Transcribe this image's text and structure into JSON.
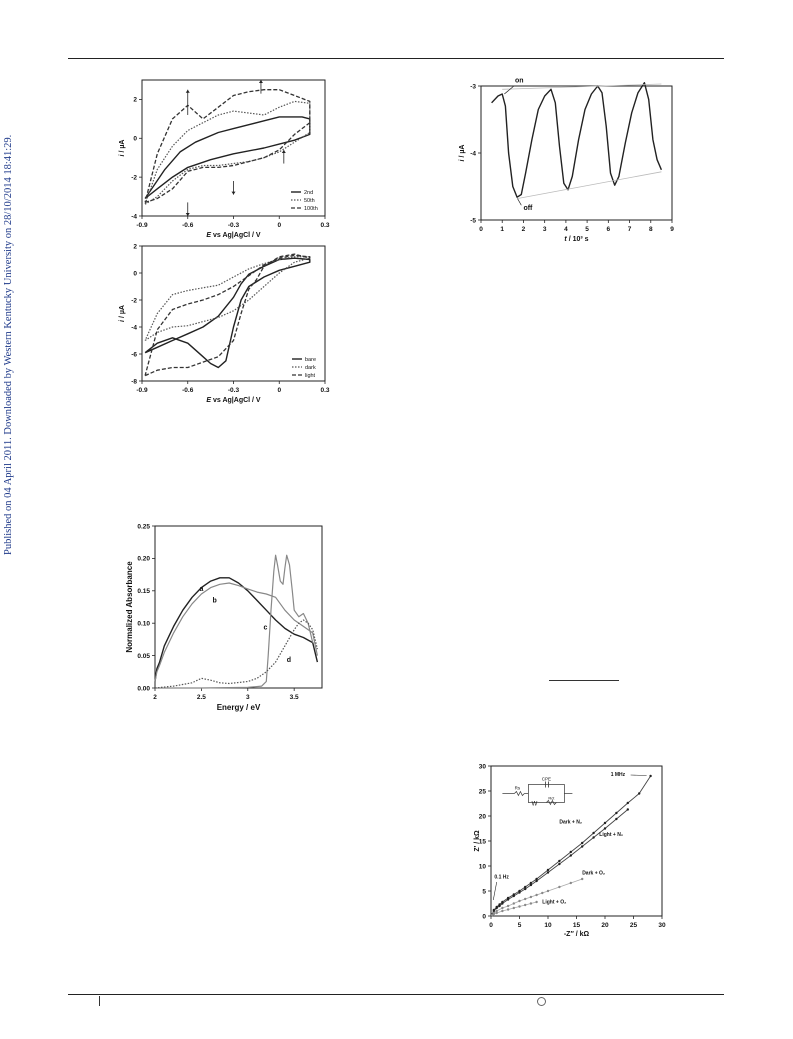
{
  "side_note": "Published on 04 April 2011. Downloaded by Western Kentucky University on 28/10/2014 18:41:29.",
  "chart_data": [
    {
      "type": "line",
      "id": "cv-cycles",
      "xlabel_italic": "E",
      "xlabel_rest": " vs Ag|AgCl / V",
      "ylabel_italic": "i",
      "ylabel_rest": " / µA",
      "xlim": [
        -0.9,
        0.3
      ],
      "ylim": [
        -4,
        3
      ],
      "xticks": [
        -0.9,
        -0.6,
        -0.3,
        0.0,
        0.3
      ],
      "xtick_labels": [
        "-0.9",
        "-0.6",
        "-0.3",
        "0",
        "0.3"
      ],
      "yticks": [
        -4,
        -2,
        0,
        2
      ],
      "ytick_labels": [
        "-4",
        "-2",
        "0",
        "2"
      ],
      "legend_position": "bottom-right",
      "series": [
        {
          "name": "2nd",
          "style": "solid",
          "x": [
            -0.88,
            -0.8,
            -0.7,
            -0.6,
            -0.45,
            -0.3,
            -0.1,
            0.0,
            0.1,
            0.2,
            0.2,
            0.15,
            0.05,
            0.0,
            -0.1,
            -0.2,
            -0.3,
            -0.4,
            -0.55,
            -0.65,
            -0.75,
            -0.88
          ],
          "y": [
            -3.1,
            -2.6,
            -2.0,
            -1.5,
            -1.1,
            -0.8,
            -0.5,
            -0.3,
            -0.1,
            0.2,
            1.0,
            1.1,
            1.1,
            1.1,
            0.9,
            0.7,
            0.5,
            0.3,
            -0.2,
            -0.7,
            -1.6,
            -3.1
          ]
        },
        {
          "name": "50th",
          "style": "dotted",
          "x": [
            -0.88,
            -0.8,
            -0.7,
            -0.6,
            -0.5,
            -0.4,
            -0.3,
            -0.2,
            -0.1,
            0.0,
            0.1,
            0.2,
            0.2,
            0.1,
            0.0,
            -0.1,
            -0.2,
            -0.3,
            -0.4,
            -0.5,
            -0.6,
            -0.7,
            -0.8,
            -0.88
          ],
          "y": [
            -3.4,
            -3.0,
            -2.2,
            -1.6,
            -1.4,
            -1.4,
            -1.3,
            -1.2,
            -1.0,
            -0.7,
            -0.2,
            0.3,
            1.8,
            1.9,
            1.6,
            1.2,
            1.3,
            1.4,
            1.2,
            0.8,
            0.4,
            -0.4,
            -1.6,
            -3.4
          ]
        },
        {
          "name": "100th",
          "style": "dashed",
          "x": [
            -0.88,
            -0.8,
            -0.7,
            -0.6,
            -0.5,
            -0.4,
            -0.3,
            -0.2,
            -0.1,
            0.0,
            0.1,
            0.2,
            0.2,
            0.1,
            0.0,
            -0.1,
            -0.2,
            -0.3,
            -0.4,
            -0.5,
            -0.6,
            -0.7,
            -0.8,
            -0.88
          ],
          "y": [
            -3.3,
            -3.1,
            -2.6,
            -1.7,
            -1.5,
            -1.5,
            -1.4,
            -1.2,
            -1.0,
            -0.6,
            0.2,
            0.8,
            1.9,
            2.2,
            2.5,
            2.5,
            2.4,
            2.2,
            1.6,
            1.0,
            1.7,
            1.0,
            -0.8,
            -3.3
          ]
        }
      ]
    },
    {
      "type": "line",
      "id": "photocurrent",
      "xlabel_italic": "t",
      "xlabel_rest": " / 10³ s",
      "ylabel_italic": "i",
      "ylabel_rest": " / µA",
      "xlim": [
        0,
        9
      ],
      "ylim": [
        -5,
        -3
      ],
      "xticks": [
        0,
        1,
        2,
        3,
        4,
        5,
        6,
        7,
        8,
        9
      ],
      "xtick_labels": [
        "0",
        "1",
        "2",
        "3",
        "4",
        "5",
        "6",
        "7",
        "8",
        "9"
      ],
      "yticks": [
        -5,
        -4,
        -3
      ],
      "ytick_labels": [
        "-5",
        "-4",
        "-3"
      ],
      "annotations": [
        {
          "text": "on",
          "x": 1.6,
          "y": -2.95
        },
        {
          "text": "off",
          "x": 2.0,
          "y": -4.85
        }
      ],
      "series": [
        {
          "name": "",
          "style": "solid",
          "x": [
            0.5,
            0.8,
            1.0,
            1.15,
            1.3,
            1.5,
            1.7,
            1.9,
            2.1,
            2.4,
            2.7,
            3.0,
            3.3,
            3.5,
            3.7,
            3.9,
            4.1,
            4.3,
            4.6,
            4.9,
            5.2,
            5.5,
            5.7,
            5.9,
            6.1,
            6.3,
            6.5,
            6.8,
            7.1,
            7.4,
            7.7,
            7.9,
            8.1,
            8.3,
            8.5
          ],
          "y": [
            -3.25,
            -3.15,
            -3.12,
            -3.3,
            -4.0,
            -4.5,
            -4.66,
            -4.62,
            -4.3,
            -3.8,
            -3.35,
            -3.15,
            -3.05,
            -3.25,
            -3.9,
            -4.45,
            -4.55,
            -4.35,
            -3.8,
            -3.35,
            -3.12,
            -3.0,
            -3.1,
            -3.6,
            -4.3,
            -4.48,
            -4.35,
            -3.85,
            -3.4,
            -3.1,
            -2.95,
            -3.2,
            -3.8,
            -4.1,
            -4.25
          ]
        },
        {
          "name": "",
          "style": "gray-thin",
          "x": [
            1.0,
            8.5
          ],
          "y": [
            -3.05,
            -2.97
          ]
        },
        {
          "name": "",
          "style": "gray-thin",
          "x": [
            1.7,
            8.5
          ],
          "y": [
            -4.68,
            -4.28
          ]
        }
      ]
    },
    {
      "type": "line",
      "id": "cv-dark-light",
      "xlabel_italic": "E",
      "xlabel_rest": " vs Ag|AgCl / V",
      "ylabel_italic": "i",
      "ylabel_rest": " / µA",
      "xlim": [
        -0.9,
        0.3
      ],
      "ylim": [
        -8,
        2
      ],
      "xticks": [
        -0.9,
        -0.6,
        -0.3,
        0.0,
        0.3
      ],
      "xtick_labels": [
        "-0.9",
        "-0.6",
        "-0.3",
        "0",
        "0.3"
      ],
      "yticks": [
        -8,
        -6,
        -4,
        -2,
        0,
        2
      ],
      "ytick_labels": [
        "-8",
        "-6",
        "-4",
        "-2",
        "0",
        "2"
      ],
      "legend_position": "bottom-right",
      "series": [
        {
          "name": "bare",
          "style": "solid",
          "x": [
            -0.88,
            -0.8,
            -0.7,
            -0.6,
            -0.5,
            -0.45,
            -0.4,
            -0.35,
            -0.3,
            -0.25,
            -0.2,
            -0.1,
            0.0,
            0.1,
            0.2,
            0.2,
            0.1,
            0.0,
            -0.1,
            -0.2,
            -0.25,
            -0.3,
            -0.4,
            -0.5,
            -0.6,
            -0.7,
            -0.8,
            -0.88
          ],
          "y": [
            -5.9,
            -5.2,
            -4.8,
            -5.2,
            -6.2,
            -6.7,
            -7.0,
            -6.5,
            -4.0,
            -2.0,
            -1.0,
            -0.3,
            0.2,
            0.5,
            0.8,
            1.0,
            1.1,
            1.0,
            0.5,
            -0.1,
            -0.8,
            -1.8,
            -3.2,
            -4.0,
            -4.5,
            -5.0,
            -5.5,
            -5.9
          ]
        },
        {
          "name": "dark",
          "style": "dotted",
          "x": [
            -0.88,
            -0.8,
            -0.7,
            -0.6,
            -0.5,
            -0.4,
            -0.3,
            -0.2,
            -0.1,
            0.0,
            0.1,
            0.2,
            0.2,
            0.1,
            0.0,
            -0.1,
            -0.2,
            -0.3,
            -0.4,
            -0.5,
            -0.6,
            -0.7,
            -0.8,
            -0.88
          ],
          "y": [
            -5.0,
            -4.4,
            -4.0,
            -3.9,
            -3.6,
            -3.3,
            -2.8,
            -2.0,
            -1.0,
            0.0,
            0.8,
            1.1,
            1.2,
            1.2,
            1.0,
            0.7,
            0.3,
            -0.3,
            -0.9,
            -1.1,
            -1.3,
            -1.6,
            -3.0,
            -5.0
          ]
        },
        {
          "name": "light",
          "style": "dashed",
          "x": [
            -0.88,
            -0.8,
            -0.7,
            -0.6,
            -0.5,
            -0.4,
            -0.3,
            -0.25,
            -0.2,
            -0.15,
            -0.1,
            0.0,
            0.1,
            0.2,
            0.2,
            0.1,
            0.0,
            -0.1,
            -0.2,
            -0.3,
            -0.4,
            -0.5,
            -0.6,
            -0.7,
            -0.8,
            -0.88
          ],
          "y": [
            -7.6,
            -7.2,
            -7.0,
            -7.0,
            -6.6,
            -6.2,
            -5.0,
            -3.0,
            -1.2,
            -0.5,
            0.5,
            1.2,
            1.4,
            1.1,
            1.2,
            1.3,
            1.1,
            0.6,
            -0.2,
            -1.0,
            -1.6,
            -2.0,
            -2.3,
            -2.7,
            -4.2,
            -7.6
          ]
        }
      ]
    },
    {
      "type": "line",
      "id": "absorbance",
      "xlabel": "Energy / eV",
      "ylabel": "Normalized Absorbance",
      "xlim": [
        2.0,
        3.8
      ],
      "ylim": [
        0.0,
        0.25
      ],
      "xticks": [
        2.0,
        2.5,
        3.0,
        3.5
      ],
      "xtick_labels": [
        "2",
        "2.5",
        "3",
        "3.5"
      ],
      "yticks": [
        0.0,
        0.05,
        0.1,
        0.15,
        0.2,
        0.25
      ],
      "ytick_labels": [
        "0.00",
        "0.05",
        "0.10",
        "0.15",
        "0.20",
        "0.25"
      ],
      "annotations": [
        {
          "text": "a",
          "x": 2.48,
          "y": 0.15
        },
        {
          "text": "b",
          "x": 2.62,
          "y": 0.132
        },
        {
          "text": "c",
          "x": 3.17,
          "y": 0.09
        },
        {
          "text": "d",
          "x": 3.42,
          "y": 0.04
        }
      ],
      "series": [
        {
          "name": "a",
          "style": "solid",
          "x": [
            2.0,
            2.02,
            2.05,
            2.1,
            2.2,
            2.3,
            2.4,
            2.5,
            2.6,
            2.7,
            2.8,
            2.9,
            3.0,
            3.1,
            3.2,
            3.3,
            3.4,
            3.5,
            3.6,
            3.7,
            3.75
          ],
          "y": [
            0.01,
            0.03,
            0.04,
            0.065,
            0.095,
            0.12,
            0.14,
            0.155,
            0.165,
            0.17,
            0.17,
            0.162,
            0.15,
            0.135,
            0.12,
            0.105,
            0.092,
            0.083,
            0.078,
            0.07,
            0.04
          ]
        },
        {
          "name": "b",
          "style": "gray",
          "x": [
            2.0,
            2.02,
            2.05,
            2.1,
            2.2,
            2.3,
            2.4,
            2.5,
            2.6,
            2.7,
            2.8,
            2.9,
            3.0,
            3.1,
            3.2,
            3.3,
            3.4,
            3.5,
            3.6,
            3.7,
            3.75
          ],
          "y": [
            0.01,
            0.025,
            0.035,
            0.055,
            0.085,
            0.11,
            0.13,
            0.145,
            0.155,
            0.16,
            0.162,
            0.158,
            0.153,
            0.148,
            0.145,
            0.14,
            0.12,
            0.105,
            0.095,
            0.085,
            0.05
          ]
        },
        {
          "name": "c",
          "style": "gray",
          "x": [
            2.0,
            2.5,
            3.0,
            3.15,
            3.2,
            3.22,
            3.25,
            3.28,
            3.3,
            3.32,
            3.35,
            3.38,
            3.4,
            3.42,
            3.45,
            3.48,
            3.5,
            3.55,
            3.6,
            3.65,
            3.7
          ],
          "y": [
            0.0,
            0.0,
            0.001,
            0.003,
            0.01,
            0.05,
            0.12,
            0.18,
            0.205,
            0.19,
            0.165,
            0.16,
            0.185,
            0.205,
            0.19,
            0.15,
            0.12,
            0.11,
            0.115,
            0.1,
            0.07
          ]
        },
        {
          "name": "d",
          "style": "dotted",
          "x": [
            2.0,
            2.2,
            2.4,
            2.5,
            2.6,
            2.7,
            2.8,
            3.0,
            3.1,
            3.2,
            3.3,
            3.4,
            3.5,
            3.55,
            3.6,
            3.65,
            3.7,
            3.75
          ],
          "y": [
            0.0,
            0.003,
            0.008,
            0.015,
            0.012,
            0.008,
            0.007,
            0.01,
            0.015,
            0.025,
            0.04,
            0.065,
            0.09,
            0.1,
            0.105,
            0.1,
            0.09,
            0.06
          ]
        }
      ]
    },
    {
      "type": "scatter",
      "id": "nyquist",
      "xlabel_parts": [
        "-Z",
        "″",
        " / kΩ"
      ],
      "ylabel_parts": [
        "Z",
        "′",
        " / kΩ"
      ],
      "xlim": [
        0,
        30
      ],
      "ylim": [
        0,
        30
      ],
      "xticks": [
        0,
        5,
        10,
        15,
        20,
        25,
        30
      ],
      "xtick_labels": [
        "0",
        "5",
        "10",
        "15",
        "20",
        "25",
        "30"
      ],
      "yticks": [
        0,
        5,
        10,
        15,
        20,
        25,
        30
      ],
      "ytick_labels": [
        "0",
        "5",
        "10",
        "15",
        "20",
        "25",
        "30"
      ],
      "inset": {
        "cpe": "CPE",
        "rs": "Rs",
        "rct": "Rct",
        "w": "W"
      },
      "annotations": [
        {
          "text": "1 MHz",
          "x": 21,
          "y": 28
        },
        {
          "text": "0.1 Hz",
          "x": 0.6,
          "y": 7.5
        },
        {
          "text": "Dark + N₂",
          "x": 12,
          "y": 18.5
        },
        {
          "text": "Light + N₂",
          "x": 19,
          "y": 16
        },
        {
          "text": "Dark + O₂",
          "x": 16,
          "y": 8.3
        },
        {
          "text": "Light + O₂",
          "x": 9,
          "y": 2.5
        }
      ],
      "series": [
        {
          "name": "Dark + N₂",
          "style": "solid-dots",
          "x": [
            0.2,
            0.5,
            1,
            1.5,
            2,
            3,
            4,
            5,
            6,
            7,
            8,
            10,
            12,
            14,
            16,
            18,
            20,
            22,
            24,
            26,
            28
          ],
          "y": [
            0.3,
            1.2,
            1.8,
            2.3,
            2.8,
            3.6,
            4.3,
            5.0,
            5.8,
            6.6,
            7.4,
            9.2,
            11.0,
            12.8,
            14.6,
            16.6,
            18.6,
            20.6,
            22.6,
            24.5,
            28.0
          ]
        },
        {
          "name": "Light + N₂",
          "style": "solid-dots",
          "x": [
            0.2,
            0.5,
            1,
            1.5,
            2,
            3,
            4,
            5,
            6,
            7,
            8,
            10,
            12,
            14,
            16,
            18,
            20,
            22,
            24
          ],
          "y": [
            0.3,
            1.0,
            1.6,
            2.0,
            2.5,
            3.3,
            4.0,
            4.7,
            5.4,
            6.2,
            7.0,
            8.7,
            10.4,
            12.1,
            13.9,
            15.7,
            17.5,
            19.4,
            21.3
          ]
        },
        {
          "name": "Dark + O₂",
          "style": "gray-dots",
          "x": [
            0.2,
            0.5,
            1,
            2,
            3,
            4,
            5,
            6,
            7,
            8,
            9,
            10,
            12,
            14,
            16
          ],
          "y": [
            0.2,
            0.6,
            1.0,
            1.6,
            2.0,
            2.5,
            3.0,
            3.4,
            3.8,
            4.2,
            4.6,
            5.0,
            5.8,
            6.6,
            7.4
          ]
        },
        {
          "name": "Light + O₂",
          "style": "gray-dots",
          "x": [
            0.2,
            0.5,
            1,
            2,
            3,
            4,
            5,
            6,
            7,
            8
          ],
          "y": [
            0.2,
            0.4,
            0.6,
            1.0,
            1.3,
            1.6,
            1.9,
            2.2,
            2.5,
            2.8
          ]
        }
      ]
    }
  ]
}
